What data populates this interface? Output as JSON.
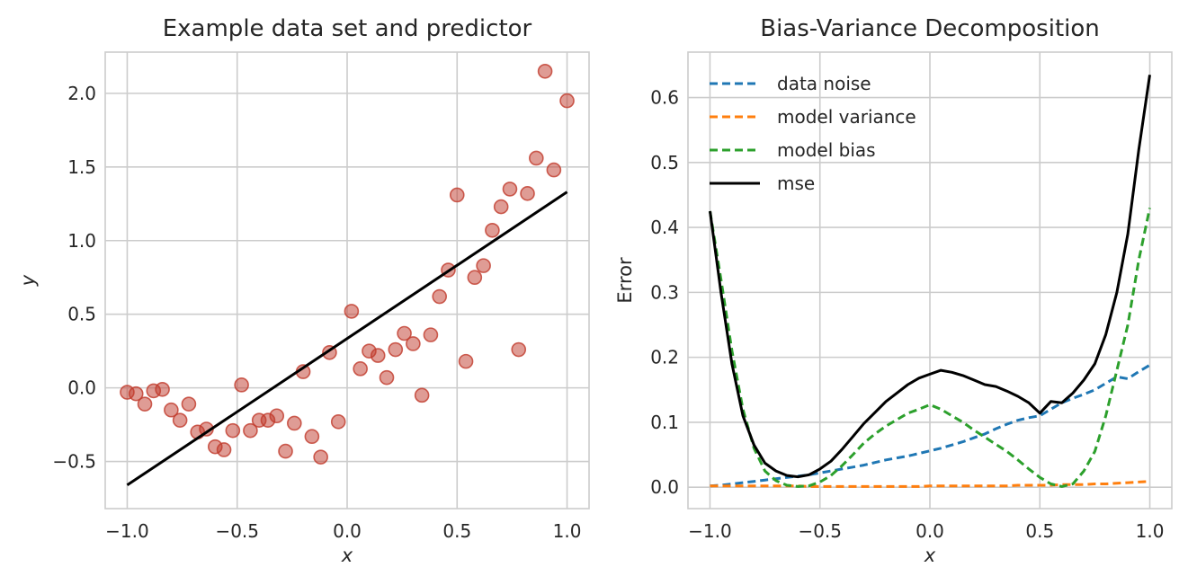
{
  "chart_data": [
    {
      "type": "scatter",
      "title": "Example data set and predictor",
      "xlabel": "x",
      "ylabel": "y",
      "xlim": [
        -1.1,
        1.1
      ],
      "ylim": [
        -0.82,
        2.28
      ],
      "xticks": [
        -1.0,
        -0.5,
        0.0,
        0.5,
        1.0
      ],
      "yticks": [
        -0.5,
        0.0,
        0.5,
        1.0,
        1.5,
        2.0
      ],
      "xtick_labels": [
        "−1.0",
        "−0.5",
        "0.0",
        "0.5",
        "1.0"
      ],
      "ytick_labels": [
        "−0.5",
        "0.0",
        "0.5",
        "1.0",
        "1.5",
        "2.0"
      ],
      "grid": true,
      "colors": {
        "points": "#c0392b",
        "line": "#000000"
      },
      "points": [
        [
          -1.0,
          -0.03
        ],
        [
          -0.96,
          -0.04
        ],
        [
          -0.92,
          -0.11
        ],
        [
          -0.88,
          -0.02
        ],
        [
          -0.84,
          -0.01
        ],
        [
          -0.8,
          -0.15
        ],
        [
          -0.76,
          -0.22
        ],
        [
          -0.72,
          -0.11
        ],
        [
          -0.68,
          -0.3
        ],
        [
          -0.64,
          -0.28
        ],
        [
          -0.6,
          -0.4
        ],
        [
          -0.56,
          -0.42
        ],
        [
          -0.52,
          -0.29
        ],
        [
          -0.48,
          0.02
        ],
        [
          -0.44,
          -0.29
        ],
        [
          -0.4,
          -0.22
        ],
        [
          -0.36,
          -0.22
        ],
        [
          -0.32,
          -0.19
        ],
        [
          -0.28,
          -0.43
        ],
        [
          -0.24,
          -0.24
        ],
        [
          -0.2,
          0.11
        ],
        [
          -0.16,
          -0.33
        ],
        [
          -0.12,
          -0.47
        ],
        [
          -0.08,
          0.24
        ],
        [
          -0.04,
          -0.23
        ],
        [
          0.02,
          0.52
        ],
        [
          0.06,
          0.13
        ],
        [
          0.1,
          0.25
        ],
        [
          0.14,
          0.22
        ],
        [
          0.18,
          0.07
        ],
        [
          0.22,
          0.26
        ],
        [
          0.26,
          0.37
        ],
        [
          0.3,
          0.3
        ],
        [
          0.34,
          -0.05
        ],
        [
          0.38,
          0.36
        ],
        [
          0.42,
          0.62
        ],
        [
          0.46,
          0.8
        ],
        [
          0.5,
          1.31
        ],
        [
          0.54,
          0.18
        ],
        [
          0.58,
          0.75
        ],
        [
          0.62,
          0.83
        ],
        [
          0.66,
          1.07
        ],
        [
          0.7,
          1.23
        ],
        [
          0.74,
          1.35
        ],
        [
          0.78,
          0.26
        ],
        [
          0.82,
          1.32
        ],
        [
          0.86,
          1.56
        ],
        [
          0.9,
          2.15
        ],
        [
          0.94,
          1.48
        ],
        [
          1.0,
          1.95
        ]
      ],
      "line": {
        "x": [
          -1.0,
          1.0
        ],
        "y": [
          -0.66,
          1.33
        ]
      }
    },
    {
      "type": "line",
      "title": "Bias-Variance Decomposition",
      "xlabel": "x",
      "ylabel": "Error",
      "xlim": [
        -1.1,
        1.1
      ],
      "ylim": [
        -0.033,
        0.67
      ],
      "xticks": [
        -1.0,
        -0.5,
        0.0,
        0.5,
        1.0
      ],
      "yticks": [
        0.0,
        0.1,
        0.2,
        0.3,
        0.4,
        0.5,
        0.6
      ],
      "xtick_labels": [
        "−1.0",
        "−0.5",
        "0.0",
        "0.5",
        "1.0"
      ],
      "ytick_labels": [
        "0.0",
        "0.1",
        "0.2",
        "0.3",
        "0.4",
        "0.5",
        "0.6"
      ],
      "grid": true,
      "legend": "top-left",
      "x": [
        -1.0,
        -0.95,
        -0.9,
        -0.85,
        -0.8,
        -0.75,
        -0.7,
        -0.65,
        -0.6,
        -0.55,
        -0.5,
        -0.45,
        -0.4,
        -0.35,
        -0.3,
        -0.25,
        -0.2,
        -0.15,
        -0.1,
        -0.05,
        0.0,
        0.05,
        0.1,
        0.15,
        0.2,
        0.25,
        0.3,
        0.35,
        0.4,
        0.45,
        0.5,
        0.55,
        0.6,
        0.65,
        0.7,
        0.75,
        0.8,
        0.85,
        0.9,
        0.95,
        1.0
      ],
      "series": [
        {
          "name": "data noise",
          "style": "dashed",
          "color": "#1f77b4",
          "values": [
            0.002,
            0.003,
            0.005,
            0.007,
            0.009,
            0.011,
            0.013,
            0.015,
            0.017,
            0.019,
            0.022,
            0.025,
            0.028,
            0.031,
            0.034,
            0.038,
            0.042,
            0.045,
            0.048,
            0.052,
            0.056,
            0.06,
            0.065,
            0.07,
            0.076,
            0.082,
            0.09,
            0.097,
            0.103,
            0.107,
            0.11,
            0.12,
            0.13,
            0.137,
            0.143,
            0.15,
            0.16,
            0.17,
            0.167,
            0.178,
            0.188
          ]
        },
        {
          "name": "model variance",
          "style": "dashed",
          "color": "#ff7f0e",
          "values": [
            0.002,
            0.002,
            0.002,
            0.002,
            0.002,
            0.002,
            0.002,
            0.002,
            0.002,
            0.001,
            0.001,
            0.001,
            0.001,
            0.001,
            0.001,
            0.001,
            0.001,
            0.001,
            0.001,
            0.001,
            0.002,
            0.002,
            0.002,
            0.002,
            0.002,
            0.002,
            0.002,
            0.002,
            0.003,
            0.003,
            0.003,
            0.003,
            0.004,
            0.004,
            0.004,
            0.005,
            0.005,
            0.006,
            0.007,
            0.008,
            0.009
          ]
        },
        {
          "name": "model bias",
          "style": "dashed",
          "color": "#2ca02c",
          "values": [
            0.425,
            0.32,
            0.21,
            0.12,
            0.06,
            0.025,
            0.01,
            0.003,
            0.001,
            0.002,
            0.008,
            0.018,
            0.033,
            0.05,
            0.068,
            0.082,
            0.094,
            0.104,
            0.114,
            0.12,
            0.127,
            0.12,
            0.11,
            0.1,
            0.088,
            0.077,
            0.066,
            0.055,
            0.042,
            0.028,
            0.015,
            0.005,
            0.001,
            0.005,
            0.025,
            0.055,
            0.11,
            0.18,
            0.25,
            0.35,
            0.43
          ]
        },
        {
          "name": "mse",
          "style": "solid",
          "color": "#000000",
          "values": [
            0.425,
            0.3,
            0.19,
            0.11,
            0.065,
            0.037,
            0.025,
            0.018,
            0.016,
            0.019,
            0.028,
            0.04,
            0.058,
            0.078,
            0.098,
            0.115,
            0.132,
            0.145,
            0.158,
            0.168,
            0.174,
            0.18,
            0.177,
            0.172,
            0.165,
            0.158,
            0.155,
            0.148,
            0.14,
            0.13,
            0.114,
            0.132,
            0.13,
            0.145,
            0.165,
            0.19,
            0.235,
            0.3,
            0.39,
            0.52,
            0.635
          ]
        }
      ]
    }
  ]
}
